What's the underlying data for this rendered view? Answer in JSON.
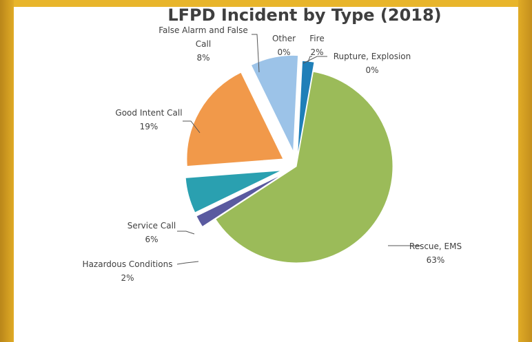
{
  "chart_data": {
    "type": "pie",
    "title": "LFPD Incident by Type (2018)",
    "slices": [
      {
        "label": "Fire",
        "value_label": "2%",
        "value": 2,
        "color": "#1f7fb8"
      },
      {
        "label": "Rupture, Explosion",
        "value_label": "0%",
        "value": 0,
        "color": "#c0504d"
      },
      {
        "label": "Rescue, EMS",
        "value_label": "63%",
        "value": 63,
        "color": "#9bbb59"
      },
      {
        "label": "Hazardous Conditions",
        "value_label": "2%",
        "value": 2,
        "color": "#5a5aa0"
      },
      {
        "label": "Service Call",
        "value_label": "6%",
        "value": 6,
        "color": "#2aa0b0"
      },
      {
        "label": "Good Intent Call",
        "value_label": "19%",
        "value": 19,
        "color": "#f1994a"
      },
      {
        "label": "False Alarm and False Call",
        "label_lines": [
          "False Alarm and False",
          "Call"
        ],
        "value_label": "8%",
        "value": 8,
        "color": "#9cc3e8"
      },
      {
        "label": "Other",
        "value_label": "0%",
        "value": 0,
        "color": "#7f7f7f"
      }
    ],
    "legend": "none",
    "data_labels": "outside with leader lines"
  }
}
